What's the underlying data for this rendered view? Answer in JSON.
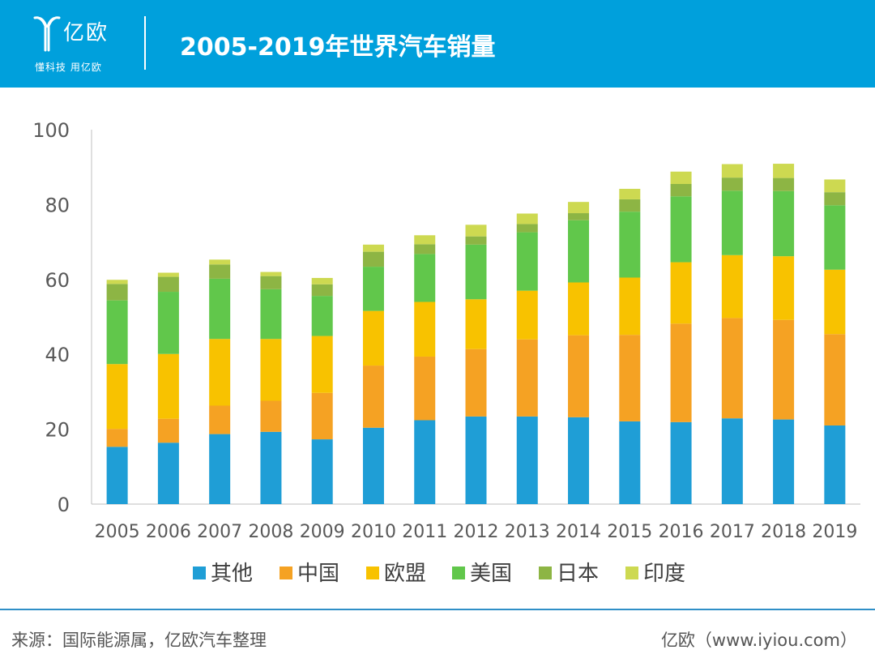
{
  "header": {
    "logo_text": "亿欧",
    "logo_slogan": "懂科技 用亿欧",
    "title": "2005-2019年世界汽车销量",
    "brand_color": "#00a0dc"
  },
  "footer": {
    "source": "来源：国际能源属，亿欧汽车整理",
    "credit": "亿欧（www.iyiou.com）"
  },
  "chart_data": {
    "type": "bar",
    "stacked": true,
    "title": "",
    "xlabel": "",
    "ylabel": "",
    "ylim": [
      0,
      100
    ],
    "yticks": [
      "0",
      "20",
      "40",
      "60",
      "80",
      "100"
    ],
    "grid": false,
    "legend_position": "bottom",
    "categories": [
      "2005",
      "2006",
      "2007",
      "2008",
      "2009",
      "2010",
      "2011",
      "2012",
      "2013",
      "2014",
      "2015",
      "2016",
      "2017",
      "2018",
      "2019"
    ],
    "series": [
      {
        "name": "其他",
        "color": "#1f9ed6",
        "values": [
          15.3,
          16.4,
          18.7,
          19.3,
          17.3,
          20.4,
          22.4,
          23.4,
          23.4,
          23.2,
          22.1,
          21.9,
          22.9,
          22.6,
          21.0
        ]
      },
      {
        "name": "中国",
        "color": "#f5a223",
        "values": [
          4.8,
          6.4,
          7.6,
          8.3,
          12.4,
          16.6,
          17.0,
          18.0,
          20.6,
          21.9,
          23.1,
          26.3,
          26.8,
          26.6,
          24.4
        ]
      },
      {
        "name": "欧盟",
        "color": "#f8c200",
        "values": [
          17.3,
          17.3,
          17.8,
          16.5,
          15.2,
          14.6,
          14.6,
          13.3,
          13.0,
          14.1,
          15.3,
          16.4,
          16.8,
          17.0,
          17.2
        ]
      },
      {
        "name": "美国",
        "color": "#61c74b",
        "values": [
          17.0,
          16.6,
          16.1,
          13.3,
          10.7,
          11.8,
          12.8,
          14.6,
          15.6,
          16.6,
          17.6,
          17.6,
          17.2,
          17.4,
          17.2
        ]
      },
      {
        "name": "日本",
        "color": "#8db544",
        "values": [
          4.4,
          4.0,
          3.8,
          3.5,
          3.1,
          4.0,
          2.6,
          2.2,
          2.2,
          1.9,
          3.3,
          3.3,
          3.5,
          3.5,
          3.5
        ]
      },
      {
        "name": "印度",
        "color": "#cdd951",
        "values": [
          1.1,
          1.1,
          1.3,
          1.1,
          1.7,
          1.9,
          2.4,
          3.1,
          2.8,
          3.0,
          2.8,
          3.3,
          3.6,
          3.8,
          3.4
        ]
      }
    ]
  }
}
